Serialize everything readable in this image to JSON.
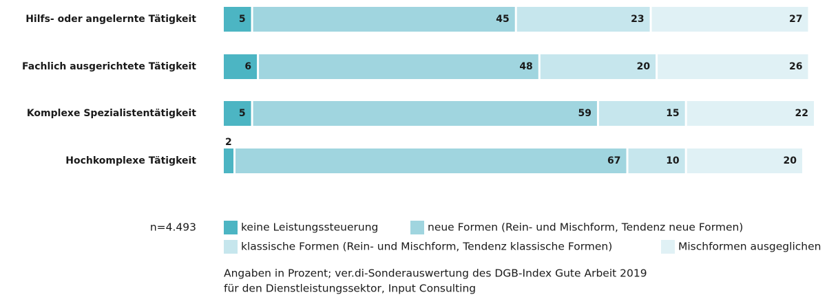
{
  "chart_data": {
    "type": "stacked_barh",
    "categories": [
      "Hilfs- oder angelernte Tätigkeit",
      "Fachlich ausgerichtete Tätigkeit",
      "Komplexe Spezialistentätigkeit",
      "Hochkomplexe Tätigkeit"
    ],
    "series": [
      {
        "name": "keine Leistungssteuerung",
        "color": "#4cb5c3",
        "values": [
          5,
          6,
          5,
          2
        ]
      },
      {
        "name": "neue Formen (Rein- und Mischform, Tendenz neue Formen)",
        "color": "#a0d5df",
        "values": [
          45,
          48,
          59,
          67
        ]
      },
      {
        "name": "klassische Formen (Rein- und Mischform, Tendenz klassische Formen)",
        "color": "#c6e6ed",
        "values": [
          23,
          20,
          15,
          10
        ]
      },
      {
        "name": "Mischformen ausgeglichen",
        "color": "#e0f1f5",
        "values": [
          27,
          26,
          22,
          20
        ]
      }
    ],
    "sample": "n=4.493",
    "notes": [
      "Angaben in Prozent; ver.di-Sonderauswertung des DGB-Index Gute Arbeit 2019",
      "für den Dienstleistungssektor, Input Consulting"
    ]
  }
}
